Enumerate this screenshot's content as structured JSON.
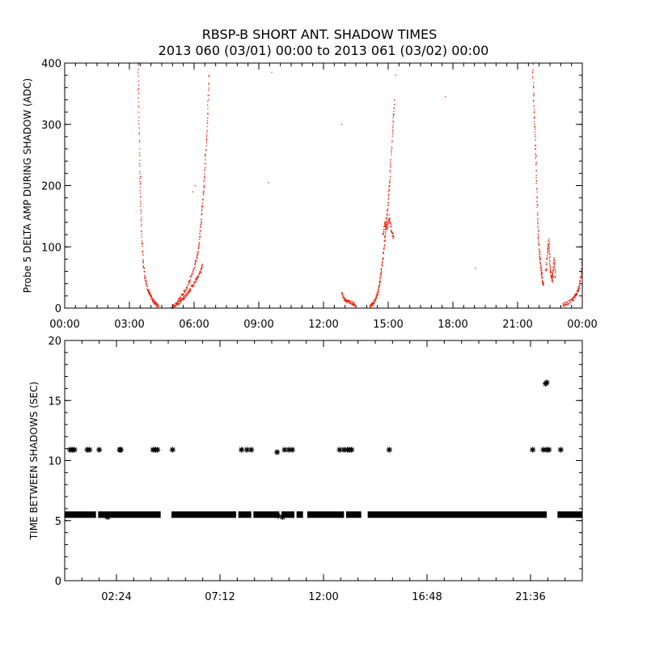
{
  "title": {
    "line1": "RBSP-B SHORT ANT. SHADOW TIMES",
    "line2": "2013 060 (03/01) 00:00 to 2013 061 (03/02) 00:00"
  },
  "colors": {
    "delta_amp": "#e8220a",
    "shadow_gap": "#000000"
  },
  "chart_data": [
    {
      "type": "scatter",
      "ylabel": "Probe 5 DELTA AMP DURING SHADOW (ADC)",
      "xlabel": "",
      "xlim": [
        0,
        24
      ],
      "ylim": [
        0,
        400
      ],
      "x_unit": "hours",
      "xtick_labels": [
        "00:00",
        "03:00",
        "06:00",
        "09:00",
        "12:00",
        "15:00",
        "18:00",
        "21:00",
        "00:00"
      ],
      "ytick_labels": [
        "0",
        "100",
        "200",
        "300",
        "400"
      ],
      "xticks": [
        0,
        3,
        6,
        9,
        12,
        15,
        18,
        21,
        24
      ],
      "yticks": [
        0,
        100,
        200,
        300,
        400
      ],
      "marker": "dot",
      "series": [
        {
          "curves": [
            [
              [
                3.4,
                400
              ],
              [
                3.43,
                320
              ],
              [
                3.48,
                230
              ],
              [
                3.52,
                170
              ],
              [
                3.58,
                110
              ],
              [
                3.65,
                70
              ],
              [
                3.75,
                45
              ],
              [
                3.85,
                30
              ],
              [
                3.95,
                22
              ],
              [
                4.05,
                15
              ],
              [
                4.15,
                10
              ],
              [
                4.25,
                6
              ],
              [
                4.35,
                3
              ]
            ],
            [
              [
                4.95,
                2
              ],
              [
                5.1,
                5
              ],
              [
                5.25,
                8
              ],
              [
                5.4,
                12
              ],
              [
                5.55,
                18
              ],
              [
                5.7,
                25
              ],
              [
                5.85,
                33
              ],
              [
                6.0,
                40
              ],
              [
                6.15,
                50
              ],
              [
                6.28,
                58
              ],
              [
                6.38,
                70
              ]
            ],
            [
              [
                5.2,
                8
              ],
              [
                5.4,
                20
              ],
              [
                5.6,
                30
              ],
              [
                5.8,
                45
              ],
              [
                6.0,
                65
              ],
              [
                6.15,
                85
              ],
              [
                6.25,
                110
              ],
              [
                6.32,
                140
              ],
              [
                6.4,
                175
              ],
              [
                6.48,
                210
              ],
              [
                6.55,
                260
              ],
              [
                6.62,
                310
              ],
              [
                6.7,
                380
              ]
            ],
            [
              [
                12.85,
                25
              ],
              [
                12.95,
                15
              ],
              [
                13.05,
                12
              ],
              [
                13.2,
                10
              ],
              [
                13.35,
                8
              ],
              [
                13.45,
                5
              ]
            ],
            [
              [
                14.15,
                3
              ],
              [
                14.25,
                6
              ],
              [
                14.35,
                10
              ],
              [
                14.45,
                18
              ],
              [
                14.55,
                30
              ],
              [
                14.62,
                45
              ],
              [
                14.7,
                65
              ],
              [
                14.78,
                90
              ],
              [
                14.85,
                115
              ],
              [
                14.92,
                145
              ],
              [
                15.0,
                175
              ],
              [
                15.05,
                200
              ],
              [
                15.12,
                240
              ],
              [
                15.22,
                300
              ],
              [
                15.3,
                340
              ]
            ],
            [
              [
                14.75,
                120
              ],
              [
                14.85,
                140
              ],
              [
                14.95,
                130
              ],
              [
                15.05,
                150
              ],
              [
                15.15,
                125
              ],
              [
                15.25,
                115
              ]
            ],
            [
              [
                21.7,
                400
              ],
              [
                21.75,
                340
              ],
              [
                21.8,
                290
              ],
              [
                21.85,
                240
              ],
              [
                21.9,
                180
              ],
              [
                21.95,
                130
              ],
              [
                22.0,
                95
              ],
              [
                22.05,
                75
              ],
              [
                22.1,
                60
              ],
              [
                22.15,
                45
              ],
              [
                22.2,
                38
              ]
            ],
            [
              [
                22.3,
                60
              ],
              [
                22.4,
                90
              ],
              [
                22.45,
                110
              ],
              [
                22.5,
                70
              ],
              [
                22.55,
                55
              ],
              [
                22.6,
                45
              ],
              [
                22.65,
                60
              ],
              [
                22.7,
                80
              ],
              [
                22.75,
                50
              ]
            ],
            [
              [
                23.1,
                5
              ],
              [
                23.3,
                8
              ],
              [
                23.5,
                12
              ],
              [
                23.65,
                18
              ],
              [
                23.75,
                25
              ],
              [
                23.85,
                35
              ],
              [
                23.95,
                55
              ],
              [
                24.0,
                80
              ]
            ]
          ],
          "isolated": [
            [
              3.55,
              215
            ],
            [
              9.45,
              205
            ],
            [
              9.6,
              385
            ],
            [
              12.8,
              400
            ],
            [
              12.85,
              300
            ],
            [
              17.65,
              345
            ],
            [
              19.05,
              65
            ],
            [
              15.35,
              380
            ],
            [
              5.95,
              190
            ],
            [
              6.05,
              200
            ]
          ]
        }
      ]
    },
    {
      "type": "scatter",
      "ylabel": "TIME BETWEEN SHADOWS (SEC)",
      "xlabel": "",
      "xlim": [
        0,
        24
      ],
      "ylim": [
        0,
        20
      ],
      "x_unit": "hours",
      "xtick_labels": [
        "02:24",
        "07:12",
        "12:00",
        "16:48",
        "21:36"
      ],
      "ytick_labels": [
        "0",
        "5",
        "10",
        "15",
        "20"
      ],
      "xticks": [
        2.4,
        7.2,
        12,
        16.8,
        21.6
      ],
      "yticks": [
        0,
        5,
        10,
        15,
        20
      ],
      "marker": "asterisk",
      "series": [
        {
          "base_value": 5.5,
          "base_segments": [
            [
              0.0,
              1.45
            ],
            [
              1.55,
              4.45
            ],
            [
              4.95,
              7.95
            ],
            [
              8.05,
              8.65
            ],
            [
              8.75,
              9.95
            ],
            [
              10.05,
              10.65
            ],
            [
              10.75,
              11.05
            ],
            [
              11.25,
              12.95
            ],
            [
              13.05,
              13.75
            ],
            [
              14.05,
              22.35
            ],
            [
              22.85,
              24.0
            ]
          ],
          "points": [
            [
              0.25,
              10.9
            ],
            [
              0.35,
              10.9
            ],
            [
              0.45,
              10.9
            ],
            [
              1.05,
              10.9
            ],
            [
              1.15,
              10.9
            ],
            [
              1.6,
              10.9
            ],
            [
              2.55,
              10.9
            ],
            [
              2.6,
              10.9
            ],
            [
              4.1,
              10.9
            ],
            [
              4.2,
              10.9
            ],
            [
              4.3,
              10.9
            ],
            [
              5.0,
              10.9
            ],
            [
              8.2,
              10.9
            ],
            [
              8.45,
              10.9
            ],
            [
              8.65,
              10.9
            ],
            [
              9.85,
              10.7
            ],
            [
              10.2,
              10.9
            ],
            [
              10.4,
              10.9
            ],
            [
              10.55,
              10.9
            ],
            [
              12.75,
              10.9
            ],
            [
              12.95,
              10.9
            ],
            [
              13.1,
              10.9
            ],
            [
              13.2,
              10.9
            ],
            [
              13.3,
              10.9
            ],
            [
              15.05,
              10.9
            ],
            [
              21.7,
              10.9
            ],
            [
              22.2,
              10.9
            ],
            [
              22.35,
              10.9
            ],
            [
              22.45,
              10.9
            ],
            [
              23.0,
              10.9
            ],
            [
              22.3,
              16.4
            ],
            [
              22.35,
              16.5
            ],
            [
              1.9,
              5.4
            ],
            [
              2.0,
              5.3
            ],
            [
              9.9,
              5.4
            ],
            [
              10.1,
              5.3
            ],
            [
              17.2,
              5.5
            ],
            [
              18.8,
              5.5
            ]
          ]
        }
      ]
    }
  ]
}
